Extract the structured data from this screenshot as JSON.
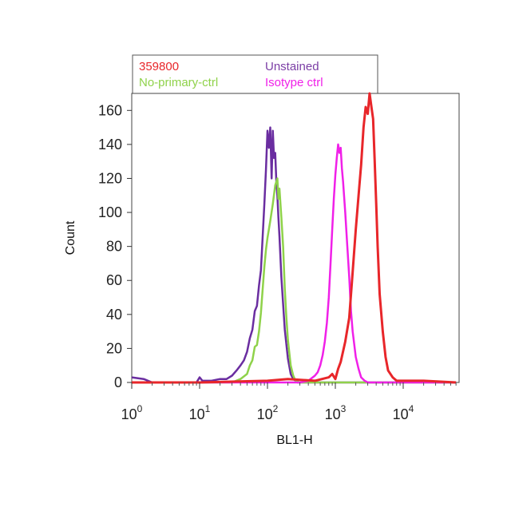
{
  "chart_data": {
    "type": "line",
    "title": "",
    "xlabel": "BL1-H",
    "ylabel": "Count",
    "x_scale": "log",
    "xlim": [
      1,
      60000
    ],
    "ylim": [
      0,
      170
    ],
    "x_ticks": [
      {
        "base": "10",
        "exp": "0",
        "value": 1
      },
      {
        "base": "10",
        "exp": "1",
        "value": 10
      },
      {
        "base": "10",
        "exp": "2",
        "value": 100
      },
      {
        "base": "10",
        "exp": "3",
        "value": 1000
      },
      {
        "base": "10",
        "exp": "4",
        "value": 10000
      }
    ],
    "y_ticks": [
      0,
      20,
      40,
      60,
      80,
      100,
      120,
      140,
      160
    ],
    "legend_position": "top",
    "legend": [
      {
        "label": "359800",
        "color": "#e8262a"
      },
      {
        "label": "Unstained",
        "color": "#7b3ea5"
      },
      {
        "label": "No-primary-ctrl",
        "color": "#8fd24a"
      },
      {
        "label": "Isotype ctrl",
        "color": "#f020e8"
      }
    ],
    "series": [
      {
        "name": "Unstained",
        "color": "#6a2da0",
        "x": [
          1,
          1.5,
          2,
          5,
          9,
          10,
          11,
          15,
          20,
          25,
          30,
          35,
          40,
          45,
          50,
          55,
          60,
          65,
          70,
          75,
          80,
          85,
          90,
          95,
          100,
          105,
          110,
          115,
          120,
          125,
          130,
          135,
          140,
          145,
          150,
          160,
          170,
          180,
          200,
          220,
          240,
          260,
          280,
          300,
          400,
          1000,
          10000,
          60000
        ],
        "y": [
          3,
          2,
          0,
          0,
          0,
          3,
          1,
          1,
          2,
          2,
          4,
          7,
          10,
          13,
          18,
          26,
          31,
          42,
          45,
          57,
          66,
          86,
          105,
          125,
          148,
          138,
          150,
          120,
          148,
          132,
          135,
          118,
          110,
          97,
          86,
          62,
          46,
          31,
          14,
          5,
          2,
          1,
          0,
          0,
          0,
          0,
          0,
          0
        ]
      },
      {
        "name": "No-primary-ctrl",
        "color": "#8fd24a",
        "x": [
          1,
          30,
          40,
          50,
          55,
          60,
          65,
          70,
          75,
          80,
          85,
          90,
          95,
          100,
          110,
          120,
          130,
          140,
          145,
          150,
          160,
          170,
          180,
          190,
          200,
          220,
          240,
          260,
          300,
          400,
          1000,
          10000,
          60000
        ],
        "y": [
          0,
          0,
          2,
          5,
          10,
          13,
          21,
          22,
          30,
          41,
          55,
          68,
          78,
          85,
          95,
          105,
          116,
          120,
          108,
          114,
          97,
          80,
          55,
          38,
          25,
          10,
          4,
          1,
          0,
          0,
          0,
          0,
          0
        ]
      },
      {
        "name": "Isotype ctrl",
        "color": "#f020e8",
        "x": [
          1,
          300,
          400,
          500,
          550,
          600,
          650,
          700,
          750,
          800,
          850,
          900,
          950,
          1000,
          1050,
          1100,
          1150,
          1200,
          1250,
          1300,
          1400,
          1500,
          1600,
          1700,
          1800,
          2000,
          2200,
          2400,
          2700,
          3000,
          4000,
          6000,
          60000
        ],
        "y": [
          0,
          0,
          1,
          4,
          6,
          10,
          16,
          24,
          35,
          50,
          70,
          90,
          108,
          122,
          132,
          140,
          135,
          138,
          126,
          118,
          100,
          80,
          62,
          42,
          30,
          15,
          8,
          3,
          1,
          0,
          0,
          0,
          0
        ]
      },
      {
        "name": "359800",
        "color": "#e8262a",
        "x": [
          1,
          10,
          100,
          200,
          500,
          800,
          900,
          1000,
          1100,
          1200,
          1400,
          1600,
          1800,
          2000,
          2200,
          2400,
          2600,
          2800,
          3000,
          3200,
          3400,
          3600,
          3800,
          4000,
          4200,
          4500,
          5000,
          5500,
          6000,
          7000,
          8000,
          10000,
          20000,
          60000
        ],
        "y": [
          0,
          0,
          1,
          2,
          1,
          3,
          5,
          2,
          8,
          12,
          24,
          38,
          65,
          90,
          110,
          128,
          150,
          162,
          158,
          170,
          162,
          155,
          130,
          105,
          80,
          52,
          30,
          15,
          7,
          3,
          1,
          1,
          1,
          0
        ]
      }
    ]
  }
}
